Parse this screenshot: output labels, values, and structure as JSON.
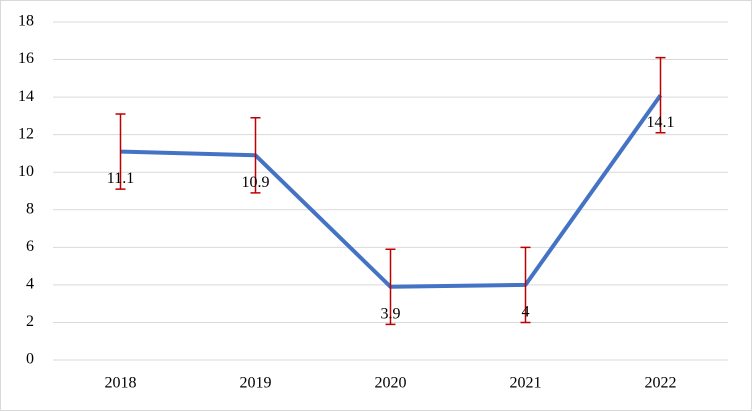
{
  "chart_data": {
    "type": "line",
    "categories": [
      "2018",
      "2019",
      "2020",
      "2021",
      "2022"
    ],
    "series": [
      {
        "color": "#4472c4",
        "values": [
          11.1,
          10.9,
          3.9,
          4,
          14.1
        ],
        "errors": [
          2,
          2,
          2,
          2,
          2
        ],
        "error_color": "#c00000"
      }
    ],
    "ylim": [
      0,
      18
    ],
    "yticks": [
      0,
      2,
      4,
      6,
      8,
      10,
      12,
      14,
      16,
      18
    ],
    "grid": true
  }
}
